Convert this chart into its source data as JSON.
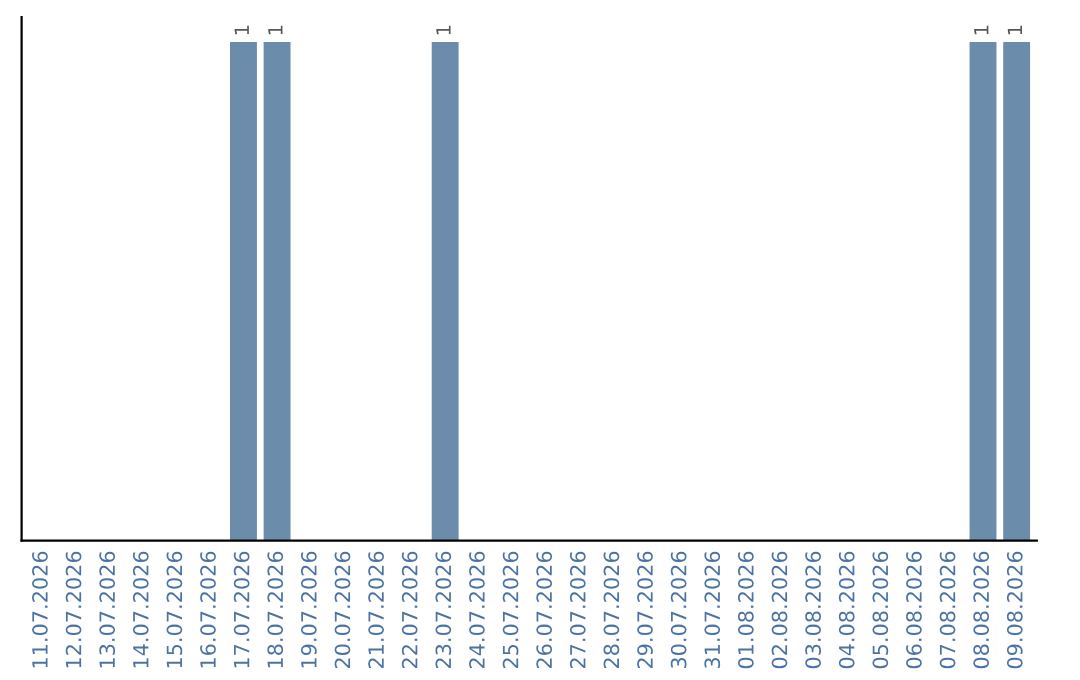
{
  "chart_data": {
    "type": "bar",
    "categories": [
      "11.07.2026",
      "12.07.2026",
      "13.07.2026",
      "14.07.2026",
      "15.07.2026",
      "16.07.2026",
      "17.07.2026",
      "18.07.2026",
      "19.07.2026",
      "20.07.2026",
      "21.07.2026",
      "22.07.2026",
      "23.07.2026",
      "24.07.2026",
      "25.07.2026",
      "26.07.2026",
      "27.07.2026",
      "28.07.2026",
      "29.07.2026",
      "30.07.2026",
      "31.07.2026",
      "01.08.2026",
      "02.08.2026",
      "03.08.2026",
      "04.08.2026",
      "05.08.2026",
      "06.08.2026",
      "07.08.2026",
      "08.08.2026",
      "09.08.2026"
    ],
    "values": [
      0,
      0,
      0,
      0,
      0,
      0,
      1,
      1,
      0,
      0,
      0,
      0,
      1,
      0,
      0,
      0,
      0,
      0,
      0,
      0,
      0,
      0,
      0,
      0,
      0,
      0,
      0,
      0,
      1,
      1
    ],
    "value_labels": [
      null,
      null,
      null,
      null,
      null,
      null,
      "1",
      "1",
      null,
      null,
      null,
      null,
      "1",
      null,
      null,
      null,
      null,
      null,
      null,
      null,
      null,
      null,
      null,
      null,
      null,
      null,
      null,
      null,
      "1",
      "1"
    ],
    "color": "#6b8cab",
    "tick_labels": "x",
    "grid": false,
    "legend": false
  }
}
